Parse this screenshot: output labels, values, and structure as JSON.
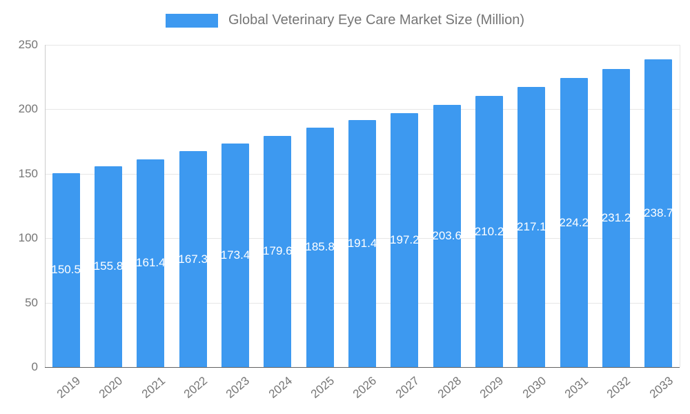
{
  "chart_data": {
    "type": "bar",
    "title": "Global Veterinary Eye Care Market Size (Million)",
    "categories": [
      "2019",
      "2020",
      "2021",
      "2022",
      "2023",
      "2024",
      "2025",
      "2026",
      "2027",
      "2028",
      "2029",
      "2030",
      "2031",
      "2032",
      "2033"
    ],
    "values": [
      150.5,
      155.8,
      161.4,
      167.3,
      173.4,
      179.6,
      185.8,
      191.4,
      197.2,
      203.6,
      210.2,
      217.1,
      224.2,
      231.2,
      238.7
    ],
    "xlabel": "",
    "ylabel": "",
    "ylim": [
      0,
      250
    ],
    "y_ticks": [
      0,
      50,
      100,
      150,
      200,
      250
    ],
    "grid": true,
    "legend_position": "top-center",
    "value_label_position": "inside-center",
    "value_label_format": "one-decimal",
    "colors": {
      "bar": "#3d99f0",
      "value_label": "#ffffff",
      "axis_text": "#757575",
      "gridline": "#e6e6e6",
      "axis_line": "#cccccc",
      "baseline": "#616161",
      "background": "#ffffff"
    }
  }
}
